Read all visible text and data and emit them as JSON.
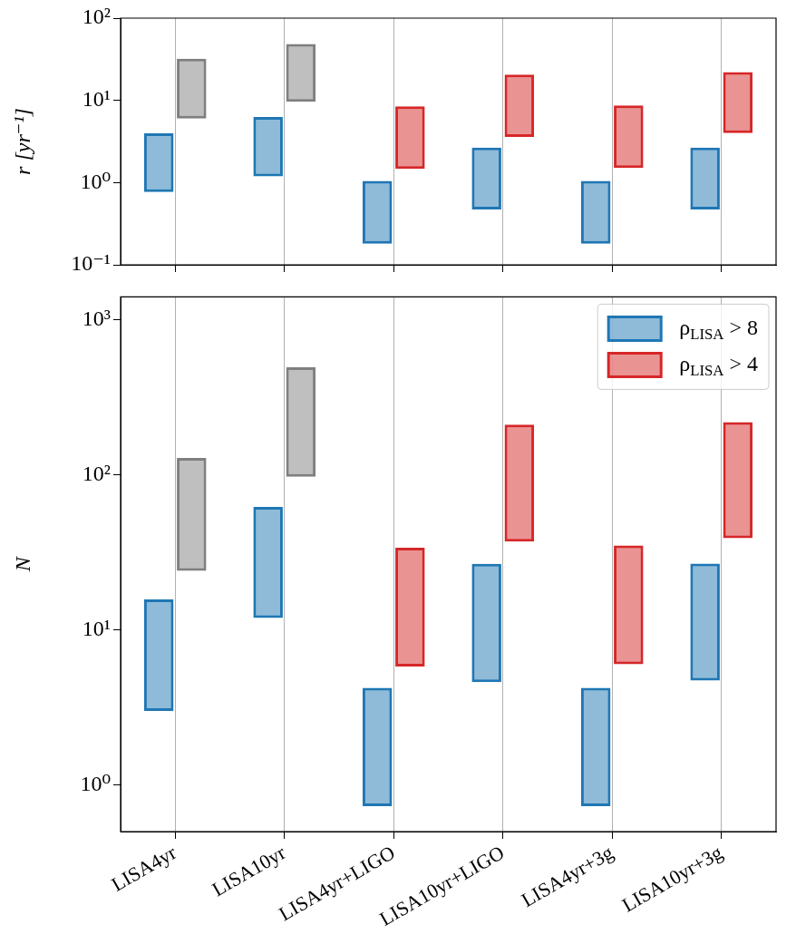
{
  "chart_data": [
    {
      "type": "bar",
      "ylabel": "r [yr⁻¹]",
      "log": true,
      "grid": "x",
      "tick_labels": "y",
      "categories": [
        null,
        null,
        null,
        null,
        null,
        null
      ],
      "ylim": [
        0.1,
        100
      ],
      "yticks": [
        {
          "value": 0.1,
          "label": "10⁻¹"
        },
        {
          "value": 1,
          "label": "10⁰"
        },
        {
          "value": 10,
          "label": "10¹"
        },
        {
          "value": 100,
          "label": "10²"
        }
      ],
      "series": [
        {
          "color": "#1f77b4",
          "base": [
            0.77,
            1.19,
            0.18,
            0.47,
            0.18,
            0.47
          ],
          "values": [
            3.2,
            5.1,
            0.87,
            2.2,
            0.87,
            2.2
          ]
        },
        {
          "color": "#d62728",
          "base": [
            null,
            null,
            1.47,
            3.6,
            1.5,
            4.0
          ],
          "values": [
            null,
            null,
            7.0,
            17,
            7.2,
            18
          ]
        },
        {
          "color": "#7f7f7f",
          "base": [
            6.0,
            9.6,
            null,
            null,
            null,
            null
          ],
          "values": [
            26,
            39,
            null,
            null,
            null,
            null
          ]
        }
      ]
    },
    {
      "type": "bar",
      "ylabel": "N",
      "log": true,
      "grid": "x",
      "legend": "top right",
      "categories": [
        "LISA4yr",
        "LISA10yr",
        "LISA4yr+LIGO",
        "LISA10yr+LIGO",
        "LISA4yr+3g",
        "LISA10yr+3g"
      ],
      "ylim": [
        0.5,
        1400
      ],
      "yticks": [
        {
          "value": 1,
          "label": "10⁰"
        },
        {
          "value": 10,
          "label": "10¹"
        },
        {
          "value": 100,
          "label": "10²"
        },
        {
          "value": 1000,
          "label": "10³"
        }
      ],
      "series": [
        {
          "name": "ρ$_{LISA}$ > 8",
          "color": "#1f77b4",
          "base": [
            3.0,
            11.9,
            0.73,
            4.6,
            0.73,
            4.7
          ],
          "values": [
            12.7,
            50,
            3.5,
            22,
            3.5,
            22
          ]
        },
        {
          "name": "ρ$_{LISA}$ > 4",
          "color": "#d62728",
          "base": [
            null,
            null,
            5.8,
            37,
            6.0,
            39
          ],
          "values": [
            null,
            null,
            28,
            173,
            29,
            179
          ]
        },
        {
          "color": "#7f7f7f",
          "base": [
            24,
            97,
            null,
            null,
            null,
            null
          ],
          "values": [
            104,
            395,
            null,
            null,
            null,
            null
          ]
        }
      ]
    }
  ]
}
